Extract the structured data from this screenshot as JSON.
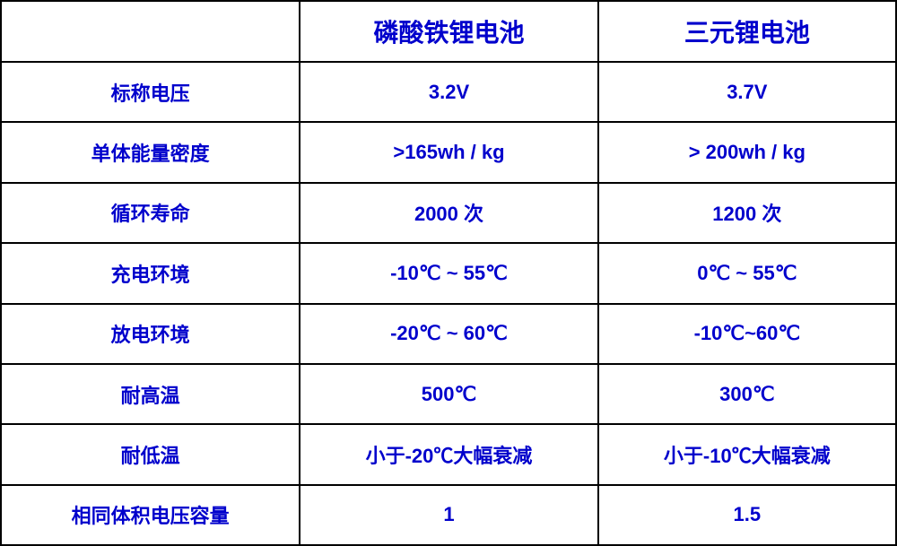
{
  "table": {
    "text_color": "#0000cc",
    "border_color": "#000000",
    "background_color": "#ffffff",
    "header_fontsize": 28,
    "body_fontsize": 22,
    "font_weight": "bold",
    "columns": [
      {
        "key": "label",
        "header": "",
        "width_pct": 33.4
      },
      {
        "key": "lfp",
        "header": "磷酸铁锂电池",
        "width_pct": 33.3
      },
      {
        "key": "nmc",
        "header": "三元锂电池",
        "width_pct": 33.3
      }
    ],
    "rows": [
      {
        "label": "标称电压",
        "lfp": "3.2V",
        "nmc": "3.7V"
      },
      {
        "label": "单体能量密度",
        "lfp": ">165wh / kg",
        "nmc": "> 200wh / kg"
      },
      {
        "label": "循环寿命",
        "lfp": "2000 次",
        "nmc": "1200 次"
      },
      {
        "label": "充电环境",
        "lfp": "-10℃ ~ 55℃",
        "nmc": "0℃ ~ 55℃"
      },
      {
        "label": "放电环境",
        "lfp": "-20℃ ~ 60℃",
        "nmc": "-10℃~60℃"
      },
      {
        "label": "耐高温",
        "lfp": "500℃",
        "nmc": "300℃"
      },
      {
        "label": "耐低温",
        "lfp": "小于-20℃大幅衰减",
        "nmc": "小于-10℃大幅衰减"
      },
      {
        "label": "相同体积电压容量",
        "lfp": "1",
        "nmc": "1.5"
      }
    ]
  }
}
